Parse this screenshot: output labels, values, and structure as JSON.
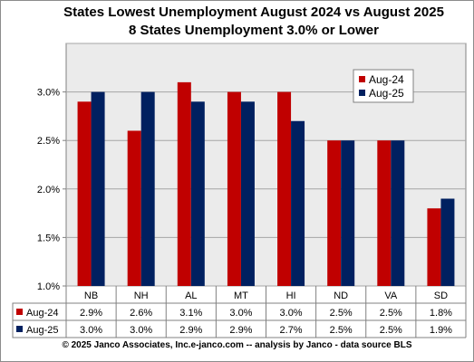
{
  "chart_data": {
    "type": "bar",
    "title": "States Lowest Unemployment August 2024 vs August 2025",
    "subtitle": "8 States  Unemployment 3.0% or Lower",
    "categories": [
      "NB",
      "NH",
      "AL",
      "MT",
      "HI",
      "ND",
      "VA",
      "SD"
    ],
    "series": [
      {
        "name": "Aug-24",
        "color": "#c00000",
        "values": [
          2.9,
          2.6,
          3.1,
          3.0,
          3.0,
          2.5,
          2.5,
          1.8
        ],
        "labels": [
          "2.9%",
          "2.6%",
          "3.1%",
          "3.0%",
          "3.0%",
          "2.5%",
          "2.5%",
          "1.8%"
        ]
      },
      {
        "name": "Aug-25",
        "color": "#002060",
        "values": [
          3.0,
          3.0,
          2.9,
          2.9,
          2.7,
          2.5,
          2.5,
          1.9
        ],
        "labels": [
          "3.0%",
          "3.0%",
          "2.9%",
          "2.9%",
          "2.7%",
          "2.5%",
          "2.5%",
          "1.9%"
        ]
      }
    ],
    "ylim": [
      1.0,
      3.5
    ],
    "yticks": [
      1.0,
      1.5,
      2.0,
      2.5,
      3.0
    ],
    "ytick_labels": [
      "1.0%",
      "1.5%",
      "2.0%",
      "2.5%",
      "3.0%"
    ],
    "grid": true,
    "legend_position": "top-right",
    "data_table": true,
    "plot_background": "#ebebeb",
    "xlabel": "",
    "ylabel": ""
  },
  "footer": "© 2025 Janco Associates, Inc.e-janco.com -- analysis by Janco - data source BLS"
}
